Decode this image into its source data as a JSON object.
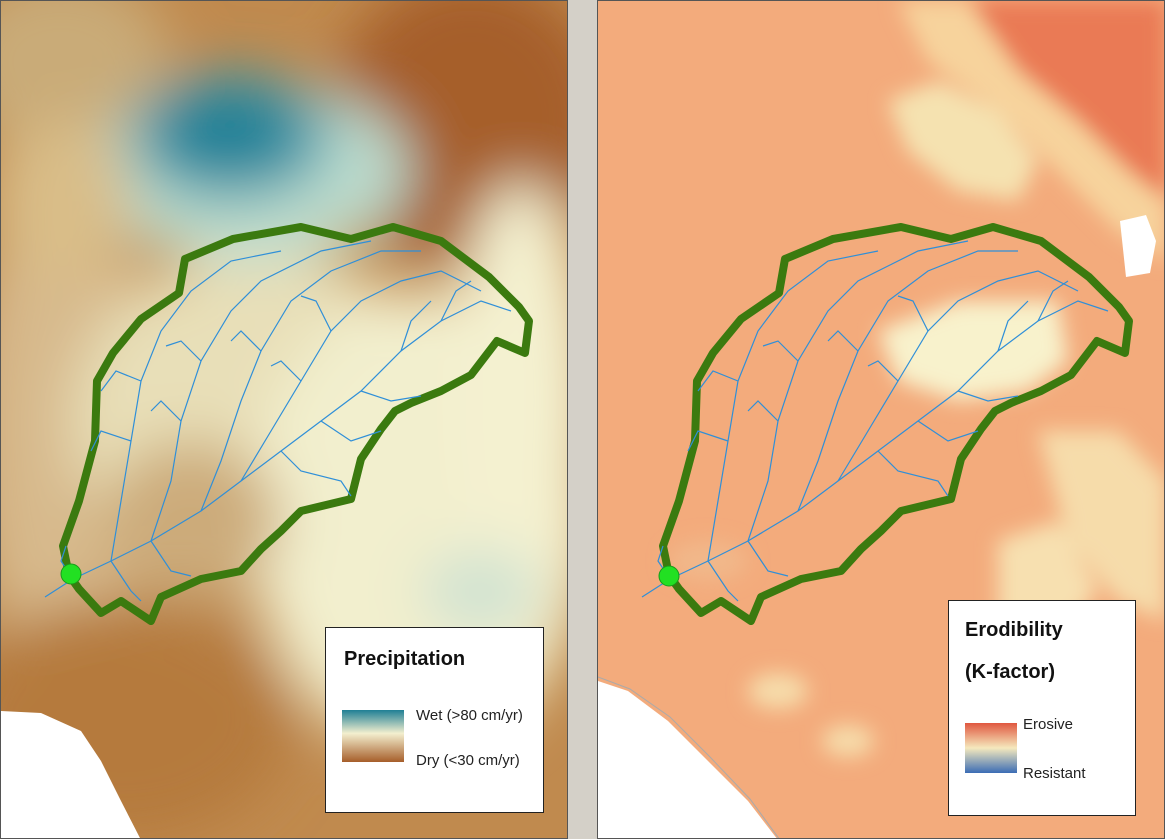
{
  "panels": [
    {
      "id": "precipitation",
      "legend": {
        "title": "Precipitation",
        "high_label": "Wet (>80 cm/yr)",
        "low_label": "Dry (<30 cm/yr)",
        "high_color": "#1f7f95",
        "low_color": "#a65e2a"
      }
    },
    {
      "id": "erodibility",
      "legend": {
        "title": "Erodibility",
        "subtitle": "(K-factor)",
        "high_label": "Erosive",
        "low_label": "Resistant",
        "high_color": "#e0573f",
        "low_color": "#3b6db5"
      }
    }
  ],
  "colors": {
    "watershed_boundary": "#3b7a0f",
    "streams": "#2f8fd8",
    "outlet_point": "#22e022",
    "background_divider": "#d4d0c8"
  }
}
